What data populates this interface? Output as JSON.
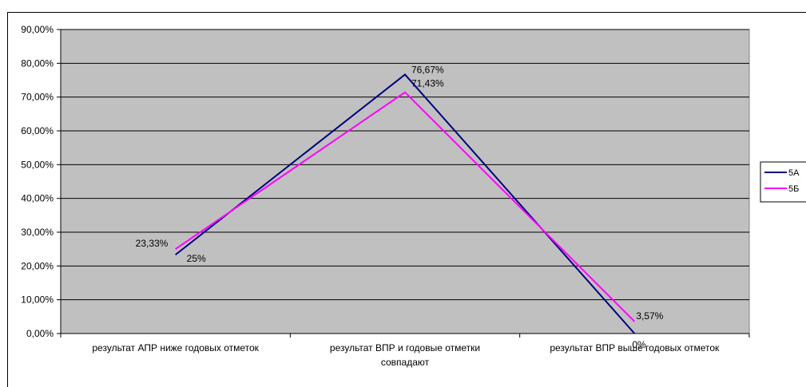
{
  "chart_data": {
    "type": "line",
    "title": "",
    "xlabel": "",
    "ylabel": "",
    "categories": [
      "результат АПР ниже годовых отметок",
      "результат ВПР и годовые отметки совпадают",
      "результат ВПР выше годовых отметок"
    ],
    "category_lines": [
      [
        "результат АПР ниже годовых отметок"
      ],
      [
        "результат ВПР и годовые отметки",
        "совпадают"
      ],
      [
        "результат ВПР выше годовых отметок"
      ]
    ],
    "ylim": [
      0,
      90
    ],
    "yticks": [
      0,
      10,
      20,
      30,
      40,
      50,
      60,
      70,
      80,
      90
    ],
    "ytick_labels": [
      "0,00%",
      "10,00%",
      "20,00%",
      "30,00%",
      "40,00%",
      "50,00%",
      "60,00%",
      "70,00%",
      "80,00%",
      "90,00%"
    ],
    "grid": true,
    "plot_background": "#c0c0c0",
    "legend_position": "right",
    "series": [
      {
        "name": "5А",
        "color": "#000080",
        "values": [
          23.33,
          76.67,
          0
        ],
        "labels": [
          "23,33%",
          "76,67%",
          "0%"
        ]
      },
      {
        "name": "5Б",
        "color": "#ff00ff",
        "values": [
          25,
          71.43,
          3.57
        ],
        "labels": [
          "25%",
          "71,43%",
          "3,57%"
        ]
      }
    ]
  }
}
